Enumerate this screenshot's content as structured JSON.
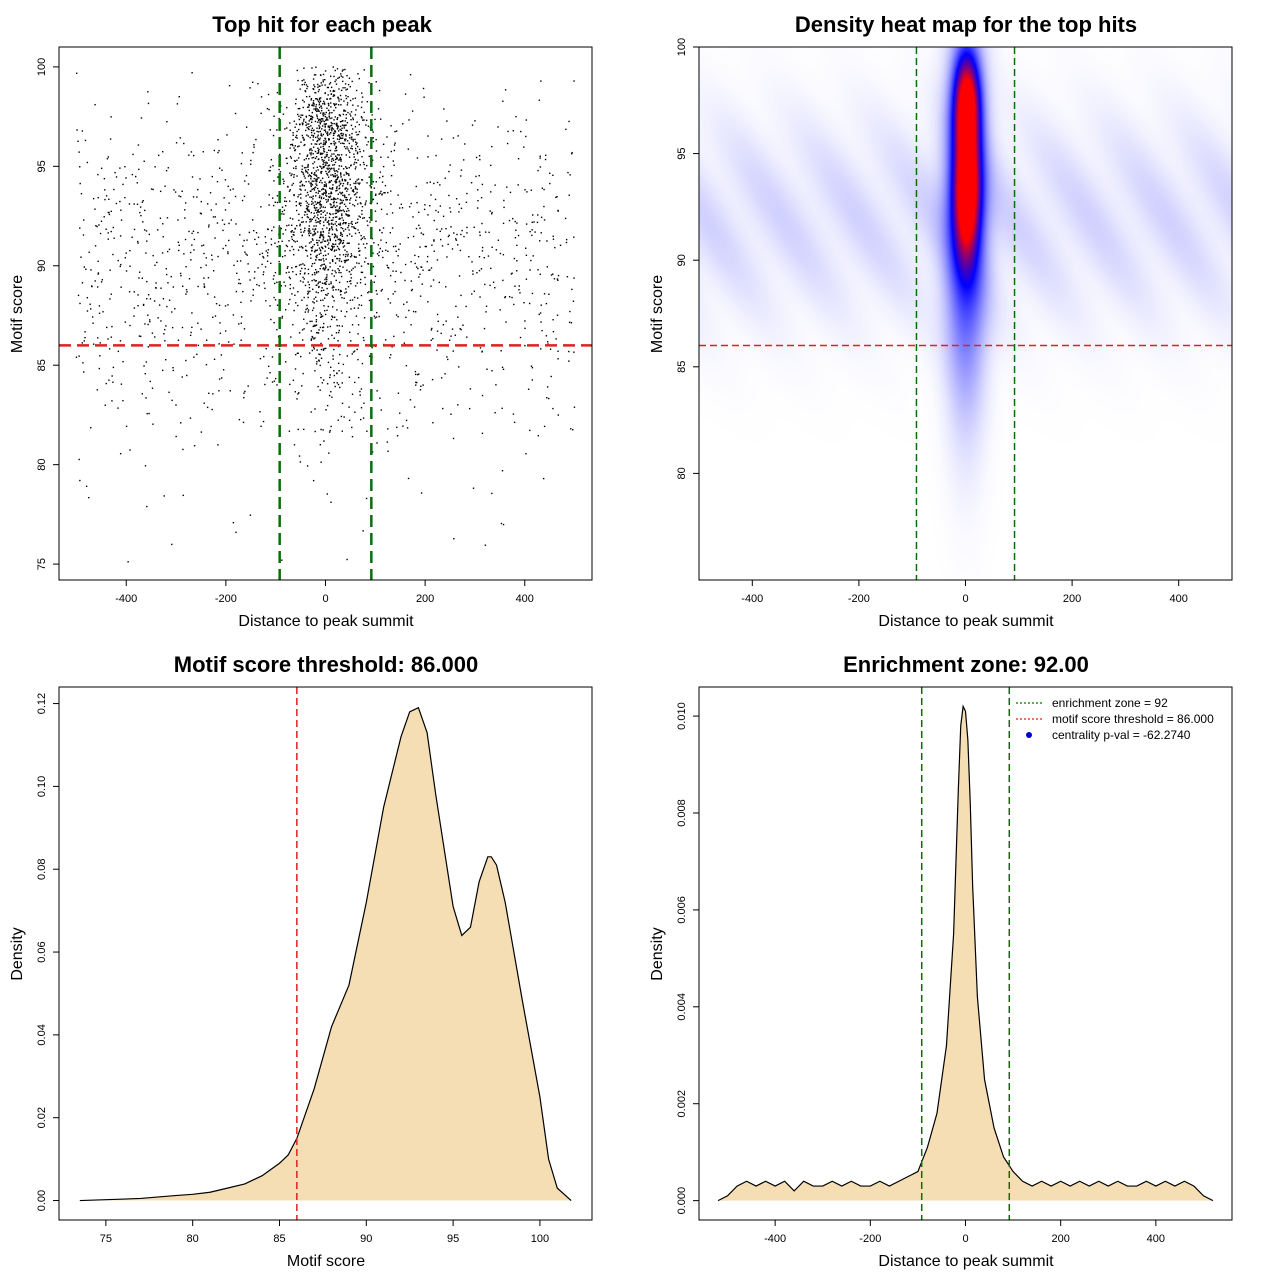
{
  "chart_data": [
    {
      "id": "p1",
      "type": "scatter",
      "title": "Top hit for each peak",
      "xlabel": "Distance to peak summit",
      "ylabel": "Motif score",
      "xlim": [
        -535,
        535
      ],
      "ylim": [
        74.2,
        101
      ],
      "xticks": [
        -400,
        -200,
        0,
        200,
        400
      ],
      "yticks": [
        75,
        80,
        85,
        90,
        95,
        100
      ],
      "hlines": [
        {
          "value": 86,
          "color": "#dd2222",
          "style": "dashed"
        }
      ],
      "vlines": [
        {
          "value": -92,
          "color": "#0a6e0a",
          "style": "dashed"
        },
        {
          "value": 92,
          "color": "#0a6e0a",
          "style": "dashed"
        }
      ],
      "distribution": {
        "x_range": [
          -500,
          500
        ],
        "score_range": [
          75,
          100
        ],
        "center_fraction": 0.45,
        "center_sd": 35,
        "background_count": 1300,
        "center_count": 1700
      }
    },
    {
      "id": "p2",
      "type": "heatmap",
      "title": "Density heat map for the top hits",
      "xlabel": "Distance to peak summit",
      "ylabel": "Motif score",
      "xlim": [
        -500,
        500
      ],
      "ylim": [
        75,
        100
      ],
      "xticks": [
        -400,
        -200,
        0,
        200,
        400
      ],
      "yticks": [
        80,
        85,
        90,
        95,
        100
      ],
      "hlines": [
        {
          "value": 86,
          "color": "#dd2222",
          "style": "dashed"
        }
      ],
      "vlines": [
        {
          "value": -92,
          "color": "#0a6e0a",
          "style": "dashed"
        },
        {
          "value": 92,
          "color": "#0a6e0a",
          "style": "dashed"
        }
      ],
      "colors": [
        "#ffffff",
        "#0000ff",
        "#ff0000"
      ],
      "hotspots": [
        {
          "x": 2,
          "y": 97.3,
          "sx": 16,
          "sy": 1.6,
          "w": 1.0
        },
        {
          "x": 2,
          "y": 93.2,
          "sx": 16,
          "sy": 1.9,
          "w": 1.0
        },
        {
          "x": 0,
          "y": 92,
          "sx": 26,
          "sy": 5.5,
          "w": 0.45
        }
      ]
    },
    {
      "id": "p3",
      "type": "area",
      "title": "Motif score threshold: 86.000",
      "xlabel": "Motif score",
      "ylabel": "Density",
      "xlim": [
        72.3,
        103.0
      ],
      "ylim": [
        -0.0047,
        0.124
      ],
      "xticks": [
        75,
        80,
        85,
        90,
        95,
        100
      ],
      "yticks": [
        0.0,
        0.02,
        0.04,
        0.06,
        0.08,
        0.1,
        0.12
      ],
      "ytick_labels": [
        "0.00",
        "0.02",
        "0.04",
        "0.06",
        "0.08",
        "0.10",
        "0.12"
      ],
      "fill": "#f5deb3",
      "vlines": [
        {
          "value": 86,
          "color": "#dd2222",
          "style": "dashed"
        }
      ],
      "x": [
        73.5,
        75,
        77,
        79,
        80,
        81,
        82,
        83,
        84,
        85,
        85.5,
        86,
        87,
        88,
        89,
        90,
        91,
        92,
        92.5,
        93,
        93.5,
        94,
        95,
        95.5,
        96,
        96.5,
        97,
        97.2,
        97.5,
        98,
        99,
        100,
        100.5,
        101,
        101.8
      ],
      "y": [
        0.0,
        0.0002,
        0.0005,
        0.0012,
        0.0015,
        0.002,
        0.003,
        0.004,
        0.006,
        0.009,
        0.011,
        0.015,
        0.027,
        0.042,
        0.052,
        0.072,
        0.095,
        0.112,
        0.118,
        0.119,
        0.113,
        0.098,
        0.071,
        0.064,
        0.066,
        0.077,
        0.083,
        0.083,
        0.081,
        0.072,
        0.048,
        0.025,
        0.01,
        0.003,
        0.0
      ]
    },
    {
      "id": "p4",
      "type": "area",
      "title": "Enrichment zone: 92.00",
      "xlabel": "Distance to peak summit",
      "ylabel": "Density",
      "xlim": [
        -560,
        560
      ],
      "ylim": [
        -0.0004,
        0.0106
      ],
      "xticks": [
        -400,
        -200,
        0,
        200,
        400
      ],
      "yticks": [
        0.0,
        0.002,
        0.004,
        0.006,
        0.008,
        0.01
      ],
      "ytick_labels": [
        "0.000",
        "0.002",
        "0.004",
        "0.006",
        "0.008",
        "0.010"
      ],
      "fill": "#f5deb3",
      "vlines": [
        {
          "value": -92,
          "color": "#0a6e0a",
          "style": "dashed"
        },
        {
          "value": 92,
          "color": "#0a6e0a",
          "style": "dashed"
        }
      ],
      "x": [
        -520,
        -500,
        -480,
        -460,
        -440,
        -420,
        -400,
        -380,
        -360,
        -340,
        -320,
        -300,
        -280,
        -260,
        -240,
        -220,
        -200,
        -180,
        -160,
        -140,
        -120,
        -100,
        -80,
        -60,
        -40,
        -25,
        -15,
        -10,
        -5,
        0,
        5,
        10,
        15,
        25,
        40,
        60,
        80,
        100,
        120,
        140,
        160,
        180,
        200,
        220,
        240,
        260,
        280,
        300,
        320,
        340,
        360,
        380,
        400,
        420,
        440,
        460,
        480,
        500,
        520
      ],
      "y": [
        0.0,
        0.0001,
        0.0003,
        0.0004,
        0.0003,
        0.0004,
        0.0003,
        0.0004,
        0.0002,
        0.0004,
        0.0003,
        0.0003,
        0.0004,
        0.0003,
        0.0004,
        0.0003,
        0.0003,
        0.0004,
        0.0003,
        0.0004,
        0.0005,
        0.0006,
        0.0011,
        0.0018,
        0.0032,
        0.0055,
        0.0085,
        0.0098,
        0.0102,
        0.0101,
        0.0095,
        0.0082,
        0.0065,
        0.0042,
        0.0025,
        0.0015,
        0.0009,
        0.0006,
        0.0004,
        0.0003,
        0.0004,
        0.0003,
        0.0004,
        0.0003,
        0.0004,
        0.0003,
        0.0004,
        0.0003,
        0.0004,
        0.0003,
        0.0003,
        0.0004,
        0.0003,
        0.0004,
        0.0003,
        0.0004,
        0.0003,
        0.0001,
        0.0
      ],
      "legend": {
        "position": "top-right",
        "items": [
          {
            "label": "enrichment zone = 92",
            "color": "#0a6e0a",
            "kind": "dotted-line"
          },
          {
            "label": "motif score threshold = 86.000",
            "color": "#dd2222",
            "kind": "dotted-line"
          },
          {
            "label": "centrality p-val = -62.2740",
            "color": "#0000cc",
            "kind": "point"
          }
        ]
      }
    }
  ]
}
